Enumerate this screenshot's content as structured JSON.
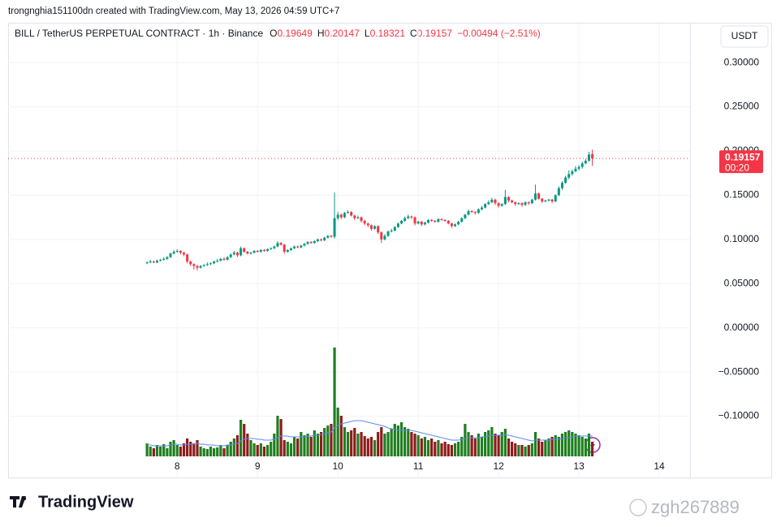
{
  "header": {
    "credit": "trongnghia151100dn created with TradingView.com, May 13, 2026 04:59 UTC+7"
  },
  "chart_data": {
    "type": "candlestick",
    "symbol": "BILL / TetherUS PERPETUAL CONTRACT · 1h · Binance",
    "ohlc_letters": [
      "O",
      "H",
      "L",
      "C"
    ],
    "change_label": "−0.00494 (−2.51%)",
    "currency": "USDT",
    "countdown": "00:20",
    "up_color": "#089981",
    "down_color": "#f23645",
    "volume_up_color": "#1f7f1f",
    "volume_down_color": "#8c1c1c",
    "volume_ma_color": "#5b8def",
    "grid": true,
    "ylim": [
      -0.1693,
      0.3442
    ],
    "yticks": [
      {
        "value": 0.3,
        "label": "0.30000"
      },
      {
        "value": 0.25,
        "label": "0.25000"
      },
      {
        "value": 0.2,
        "label": "0.20000"
      },
      {
        "value": 0.15,
        "label": "0.15000"
      },
      {
        "value": 0.1,
        "label": "0.10000"
      },
      {
        "value": 0.05,
        "label": "0.05000"
      },
      {
        "value": 0,
        "label": "0.00000"
      },
      {
        "value": -0.05,
        "label": "−0.05000"
      },
      {
        "value": -0.1,
        "label": "−0.10000"
      }
    ],
    "xlim": [
      -41.5,
      162.2
    ],
    "xticks": [
      {
        "value": 9,
        "label": "8"
      },
      {
        "value": 33,
        "label": "9"
      },
      {
        "value": 57,
        "label": "10"
      },
      {
        "value": 81,
        "label": "11"
      },
      {
        "value": 105,
        "label": "12"
      },
      {
        "value": 129,
        "label": "13"
      },
      {
        "value": 153,
        "label": "14"
      }
    ],
    "volume_lim": [
      0,
      160
    ],
    "open": [
      0.073,
      0.074,
      0.075,
      0.074,
      0.076,
      0.077,
      0.078,
      0.08,
      0.084,
      0.086,
      0.087,
      0.085,
      0.083,
      0.075,
      0.072,
      0.07,
      0.068,
      0.07,
      0.071,
      0.072,
      0.073,
      0.075,
      0.076,
      0.078,
      0.077,
      0.08,
      0.083,
      0.085,
      0.082,
      0.09,
      0.086,
      0.084,
      0.085,
      0.087,
      0.086,
      0.088,
      0.087,
      0.089,
      0.09,
      0.092,
      0.096,
      0.094,
      0.086,
      0.088,
      0.09,
      0.092,
      0.091,
      0.093,
      0.095,
      0.097,
      0.096,
      0.098,
      0.1,
      0.099,
      0.102,
      0.104,
      0.103,
      0.124,
      0.128,
      0.125,
      0.13,
      0.131,
      0.127,
      0.124,
      0.125,
      0.121,
      0.118,
      0.116,
      0.112,
      0.115,
      0.108,
      0.1,
      0.104,
      0.109,
      0.11,
      0.114,
      0.118,
      0.121,
      0.124,
      0.126,
      0.125,
      0.118,
      0.12,
      0.117,
      0.119,
      0.122,
      0.121,
      0.12,
      0.123,
      0.122,
      0.121,
      0.118,
      0.115,
      0.117,
      0.12,
      0.124,
      0.128,
      0.132,
      0.131,
      0.13,
      0.134,
      0.136,
      0.14,
      0.142,
      0.145,
      0.141,
      0.138,
      0.14,
      0.148,
      0.144,
      0.142,
      0.14,
      0.141,
      0.139,
      0.142,
      0.141,
      0.145,
      0.152,
      0.146,
      0.143,
      0.144,
      0.145,
      0.143,
      0.15,
      0.158,
      0.164,
      0.17,
      0.174,
      0.177,
      0.18,
      0.182,
      0.186,
      0.189,
      0.19649
    ],
    "high": [
      0.075,
      0.077,
      0.076,
      0.077,
      0.078,
      0.08,
      0.081,
      0.085,
      0.088,
      0.089,
      0.088,
      0.086,
      0.084,
      0.076,
      0.073,
      0.071,
      0.071,
      0.072,
      0.074,
      0.074,
      0.076,
      0.078,
      0.079,
      0.08,
      0.081,
      0.084,
      0.087,
      0.086,
      0.092,
      0.091,
      0.087,
      0.086,
      0.088,
      0.088,
      0.089,
      0.089,
      0.09,
      0.091,
      0.093,
      0.098,
      0.097,
      0.095,
      0.089,
      0.091,
      0.093,
      0.093,
      0.094,
      0.096,
      0.098,
      0.098,
      0.099,
      0.101,
      0.101,
      0.103,
      0.105,
      0.105,
      0.153,
      0.131,
      0.129,
      0.131,
      0.133,
      0.132,
      0.128,
      0.127,
      0.126,
      0.122,
      0.119,
      0.117,
      0.116,
      0.116,
      0.109,
      0.106,
      0.11,
      0.112,
      0.115,
      0.119,
      0.122,
      0.126,
      0.128,
      0.127,
      0.126,
      0.121,
      0.121,
      0.12,
      0.123,
      0.123,
      0.122,
      0.124,
      0.124,
      0.123,
      0.122,
      0.119,
      0.118,
      0.121,
      0.125,
      0.129,
      0.134,
      0.133,
      0.132,
      0.135,
      0.138,
      0.141,
      0.144,
      0.147,
      0.146,
      0.142,
      0.141,
      0.156,
      0.149,
      0.145,
      0.143,
      0.142,
      0.142,
      0.143,
      0.143,
      0.146,
      0.162,
      0.153,
      0.147,
      0.145,
      0.146,
      0.146,
      0.151,
      0.16,
      0.166,
      0.172,
      0.178,
      0.179,
      0.183,
      0.184,
      0.188,
      0.191,
      0.199,
      0.20147
    ],
    "low": [
      0.072,
      0.073,
      0.073,
      0.073,
      0.075,
      0.076,
      0.077,
      0.079,
      0.083,
      0.085,
      0.083,
      0.081,
      0.073,
      0.07,
      0.066,
      0.065,
      0.067,
      0.069,
      0.07,
      0.071,
      0.072,
      0.074,
      0.075,
      0.076,
      0.076,
      0.079,
      0.082,
      0.08,
      0.081,
      0.085,
      0.083,
      0.083,
      0.084,
      0.085,
      0.085,
      0.086,
      0.086,
      0.088,
      0.089,
      0.091,
      0.093,
      0.084,
      0.085,
      0.087,
      0.089,
      0.09,
      0.09,
      0.092,
      0.094,
      0.095,
      0.095,
      0.097,
      0.098,
      0.098,
      0.101,
      0.102,
      0.101,
      0.122,
      0.123,
      0.124,
      0.129,
      0.126,
      0.122,
      0.123,
      0.119,
      0.116,
      0.114,
      0.11,
      0.111,
      0.106,
      0.096,
      0.099,
      0.103,
      0.108,
      0.109,
      0.113,
      0.117,
      0.12,
      0.123,
      0.123,
      0.116,
      0.117,
      0.115,
      0.116,
      0.118,
      0.12,
      0.119,
      0.119,
      0.121,
      0.12,
      0.117,
      0.113,
      0.114,
      0.116,
      0.119,
      0.123,
      0.127,
      0.13,
      0.128,
      0.129,
      0.133,
      0.135,
      0.139,
      0.141,
      0.139,
      0.136,
      0.137,
      0.139,
      0.142,
      0.141,
      0.138,
      0.139,
      0.137,
      0.138,
      0.139,
      0.14,
      0.144,
      0.145,
      0.141,
      0.142,
      0.143,
      0.141,
      0.142,
      0.149,
      0.156,
      0.163,
      0.168,
      0.172,
      0.176,
      0.178,
      0.18,
      0.185,
      0.188,
      0.18321
    ],
    "close": [
      0.074,
      0.075,
      0.074,
      0.076,
      0.077,
      0.078,
      0.08,
      0.084,
      0.086,
      0.087,
      0.085,
      0.083,
      0.075,
      0.072,
      0.07,
      0.068,
      0.07,
      0.071,
      0.072,
      0.073,
      0.075,
      0.076,
      0.078,
      0.077,
      0.08,
      0.083,
      0.085,
      0.082,
      0.09,
      0.086,
      0.084,
      0.085,
      0.087,
      0.086,
      0.088,
      0.087,
      0.089,
      0.09,
      0.092,
      0.096,
      0.094,
      0.086,
      0.088,
      0.09,
      0.092,
      0.091,
      0.093,
      0.095,
      0.097,
      0.096,
      0.098,
      0.1,
      0.099,
      0.102,
      0.104,
      0.103,
      0.124,
      0.128,
      0.125,
      0.13,
      0.131,
      0.127,
      0.124,
      0.125,
      0.121,
      0.118,
      0.116,
      0.112,
      0.115,
      0.108,
      0.1,
      0.104,
      0.109,
      0.11,
      0.114,
      0.118,
      0.121,
      0.124,
      0.126,
      0.125,
      0.118,
      0.12,
      0.117,
      0.119,
      0.122,
      0.121,
      0.12,
      0.123,
      0.122,
      0.121,
      0.118,
      0.115,
      0.117,
      0.12,
      0.124,
      0.128,
      0.132,
      0.131,
      0.13,
      0.134,
      0.136,
      0.14,
      0.142,
      0.145,
      0.141,
      0.138,
      0.14,
      0.148,
      0.144,
      0.142,
      0.14,
      0.141,
      0.139,
      0.142,
      0.141,
      0.145,
      0.152,
      0.146,
      0.143,
      0.144,
      0.145,
      0.143,
      0.15,
      0.158,
      0.164,
      0.17,
      0.174,
      0.177,
      0.18,
      0.182,
      0.186,
      0.189,
      0.196,
      0.19157
    ],
    "volume": [
      16,
      12,
      10,
      14,
      12,
      15,
      10,
      18,
      20,
      14,
      12,
      16,
      22,
      18,
      16,
      20,
      12,
      10,
      9,
      12,
      10,
      11,
      14,
      10,
      14,
      18,
      22,
      26,
      45,
      40,
      28,
      20,
      16,
      14,
      16,
      12,
      14,
      18,
      28,
      50,
      46,
      20,
      18,
      16,
      24,
      22,
      30,
      26,
      28,
      24,
      32,
      28,
      30,
      35,
      38,
      40,
      134,
      60,
      50,
      36,
      30,
      32,
      35,
      28,
      30,
      25,
      22,
      24,
      20,
      30,
      36,
      28,
      30,
      34,
      40,
      38,
      42,
      36,
      34,
      30,
      28,
      26,
      22,
      24,
      20,
      22,
      18,
      20,
      16,
      18,
      15,
      14,
      16,
      18,
      24,
      40,
      30,
      26,
      22,
      28,
      24,
      30,
      32,
      36,
      28,
      26,
      30,
      34,
      22,
      18,
      16,
      14,
      14,
      12,
      14,
      16,
      30,
      22,
      18,
      20,
      22,
      24,
      26,
      24,
      28,
      30,
      32,
      30,
      28,
      26,
      24,
      22,
      28,
      18
    ],
    "volume_ma": [
      14,
      14,
      13,
      13,
      13,
      13,
      13,
      14,
      15,
      15,
      14,
      14,
      15,
      15,
      15,
      16,
      15,
      15,
      14,
      14,
      14,
      13,
      13,
      13,
      14,
      14,
      15,
      16,
      19,
      21,
      22,
      22,
      22,
      21,
      21,
      20,
      20,
      20,
      21,
      23,
      25,
      25,
      25,
      24,
      24,
      24,
      24,
      24,
      25,
      25,
      26,
      26,
      27,
      28,
      29,
      30,
      35,
      38,
      40,
      41,
      42,
      43,
      44,
      44,
      44,
      43,
      42,
      41,
      40,
      39,
      38,
      37,
      35,
      34,
      33,
      32,
      32,
      32,
      32,
      32,
      31,
      30,
      29,
      28,
      27,
      26,
      25,
      24,
      23,
      22,
      21,
      20,
      20,
      20,
      21,
      22,
      23,
      23,
      23,
      23,
      24,
      24,
      25,
      26,
      26,
      26,
      26,
      27,
      26,
      25,
      24,
      23,
      22,
      21,
      20,
      19,
      20,
      20,
      20,
      20,
      20,
      21,
      21,
      21,
      22,
      23,
      23,
      24,
      25,
      25,
      25,
      25,
      25,
      25
    ]
  },
  "footer": {
    "logo": "TradingView",
    "watermark": "zgh267889"
  }
}
